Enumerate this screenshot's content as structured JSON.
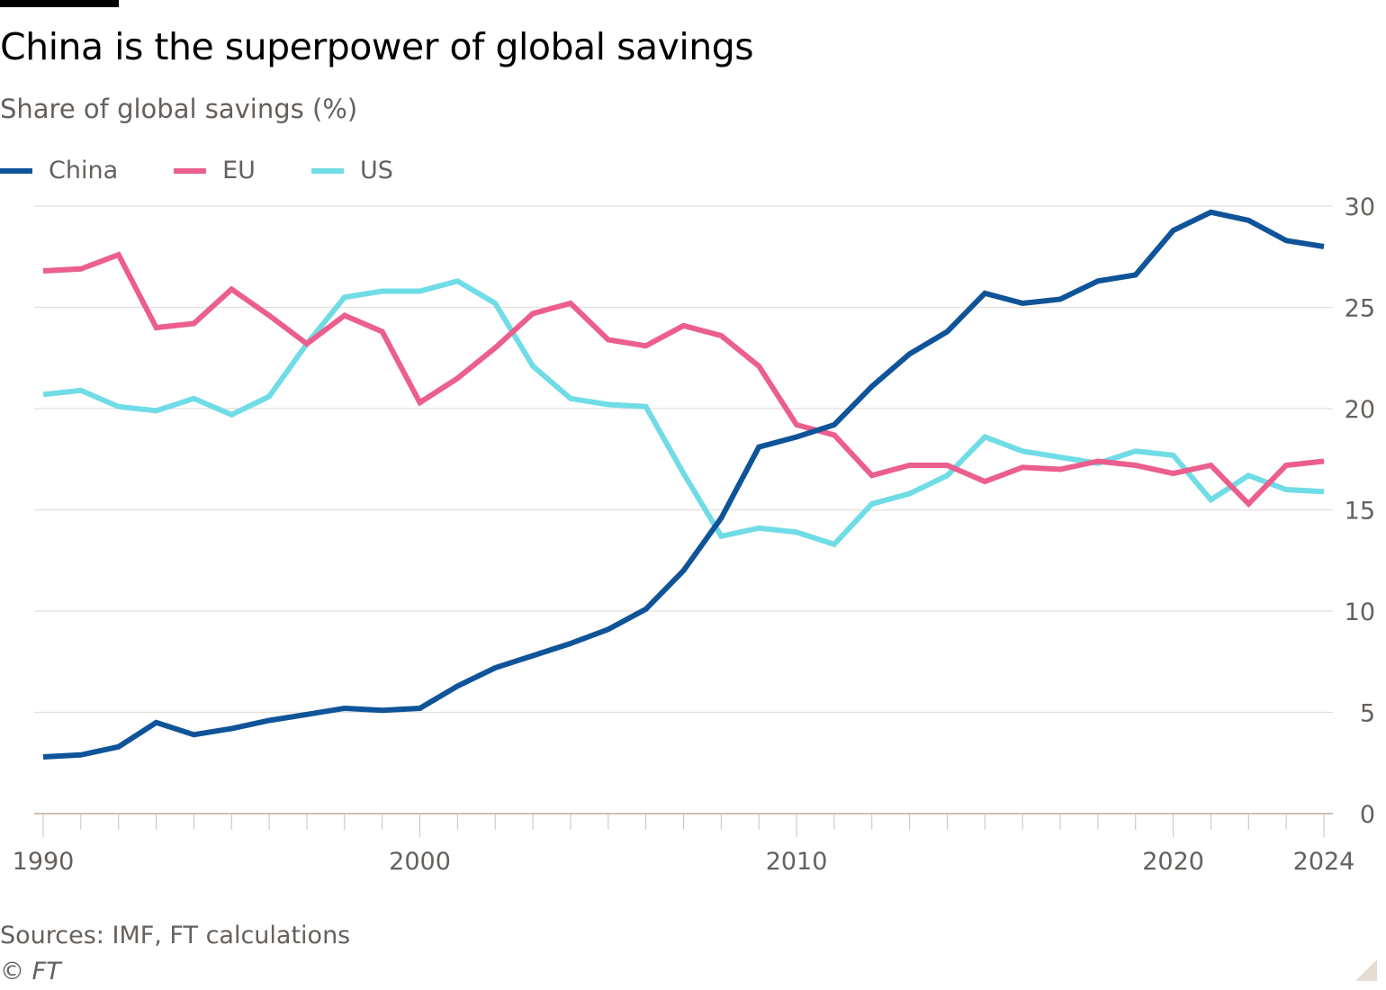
{
  "header": {
    "title": "China is the superpower of global savings",
    "subtitle": "Share of global savings (%)"
  },
  "legend": [
    {
      "label": "China",
      "color": "#0f5499"
    },
    {
      "label": "EU",
      "color": "#eb5e8d"
    },
    {
      "label": "US",
      "color": "#70dce6"
    }
  ],
  "footer": {
    "source": "Sources: IMF, FT calculations",
    "copyright": "© FT"
  },
  "chart_data": {
    "type": "line",
    "title": "China is the superpower of global savings",
    "subtitle": "Share of global savings (%)",
    "xlabel": "",
    "ylabel": "Share of global savings (%)",
    "x": [
      1990,
      1991,
      1992,
      1993,
      1994,
      1995,
      1996,
      1997,
      1998,
      1999,
      2000,
      2001,
      2002,
      2003,
      2004,
      2005,
      2006,
      2007,
      2008,
      2009,
      2010,
      2011,
      2012,
      2013,
      2014,
      2015,
      2016,
      2017,
      2018,
      2019,
      2020,
      2021,
      2022,
      2023,
      2024
    ],
    "xlim": [
      1990,
      2024
    ],
    "ylim": [
      0,
      30
    ],
    "x_ticks": [
      1990,
      2000,
      2010,
      2020,
      2024
    ],
    "y_ticks": [
      0,
      5,
      10,
      15,
      20,
      25,
      30
    ],
    "y_axis_side": "right",
    "grid": true,
    "legend_position": "top-left",
    "series": [
      {
        "name": "China",
        "color": "#0f5499",
        "values": [
          2.8,
          2.9,
          3.3,
          4.5,
          3.9,
          4.2,
          4.6,
          4.9,
          5.2,
          5.1,
          5.2,
          6.3,
          7.2,
          7.8,
          8.4,
          9.1,
          10.1,
          12.0,
          14.6,
          18.1,
          18.6,
          19.2,
          21.1,
          22.7,
          23.8,
          25.7,
          25.2,
          25.4,
          26.3,
          26.6,
          28.8,
          29.7,
          29.3,
          28.3,
          28.0
        ]
      },
      {
        "name": "EU",
        "color": "#eb5e8d",
        "values": [
          26.8,
          26.9,
          27.6,
          24.0,
          24.2,
          25.9,
          24.6,
          23.2,
          24.6,
          23.8,
          20.3,
          21.5,
          23.0,
          24.7,
          25.2,
          23.4,
          23.1,
          24.1,
          23.6,
          22.1,
          19.2,
          18.7,
          16.7,
          17.2,
          17.2,
          16.4,
          17.1,
          17.0,
          17.4,
          17.2,
          16.8,
          17.2,
          15.3,
          17.2,
          17.4
        ]
      },
      {
        "name": "US",
        "color": "#70dce6",
        "values": [
          20.7,
          20.9,
          20.1,
          19.9,
          20.5,
          19.7,
          20.6,
          23.2,
          25.5,
          25.8,
          25.8,
          26.3,
          25.2,
          22.1,
          20.5,
          20.2,
          20.1,
          16.8,
          13.7,
          14.1,
          13.9,
          13.3,
          15.3,
          15.8,
          16.7,
          18.6,
          17.9,
          17.6,
          17.3,
          17.9,
          17.7,
          15.5,
          16.7,
          16.0,
          15.9
        ]
      }
    ]
  }
}
